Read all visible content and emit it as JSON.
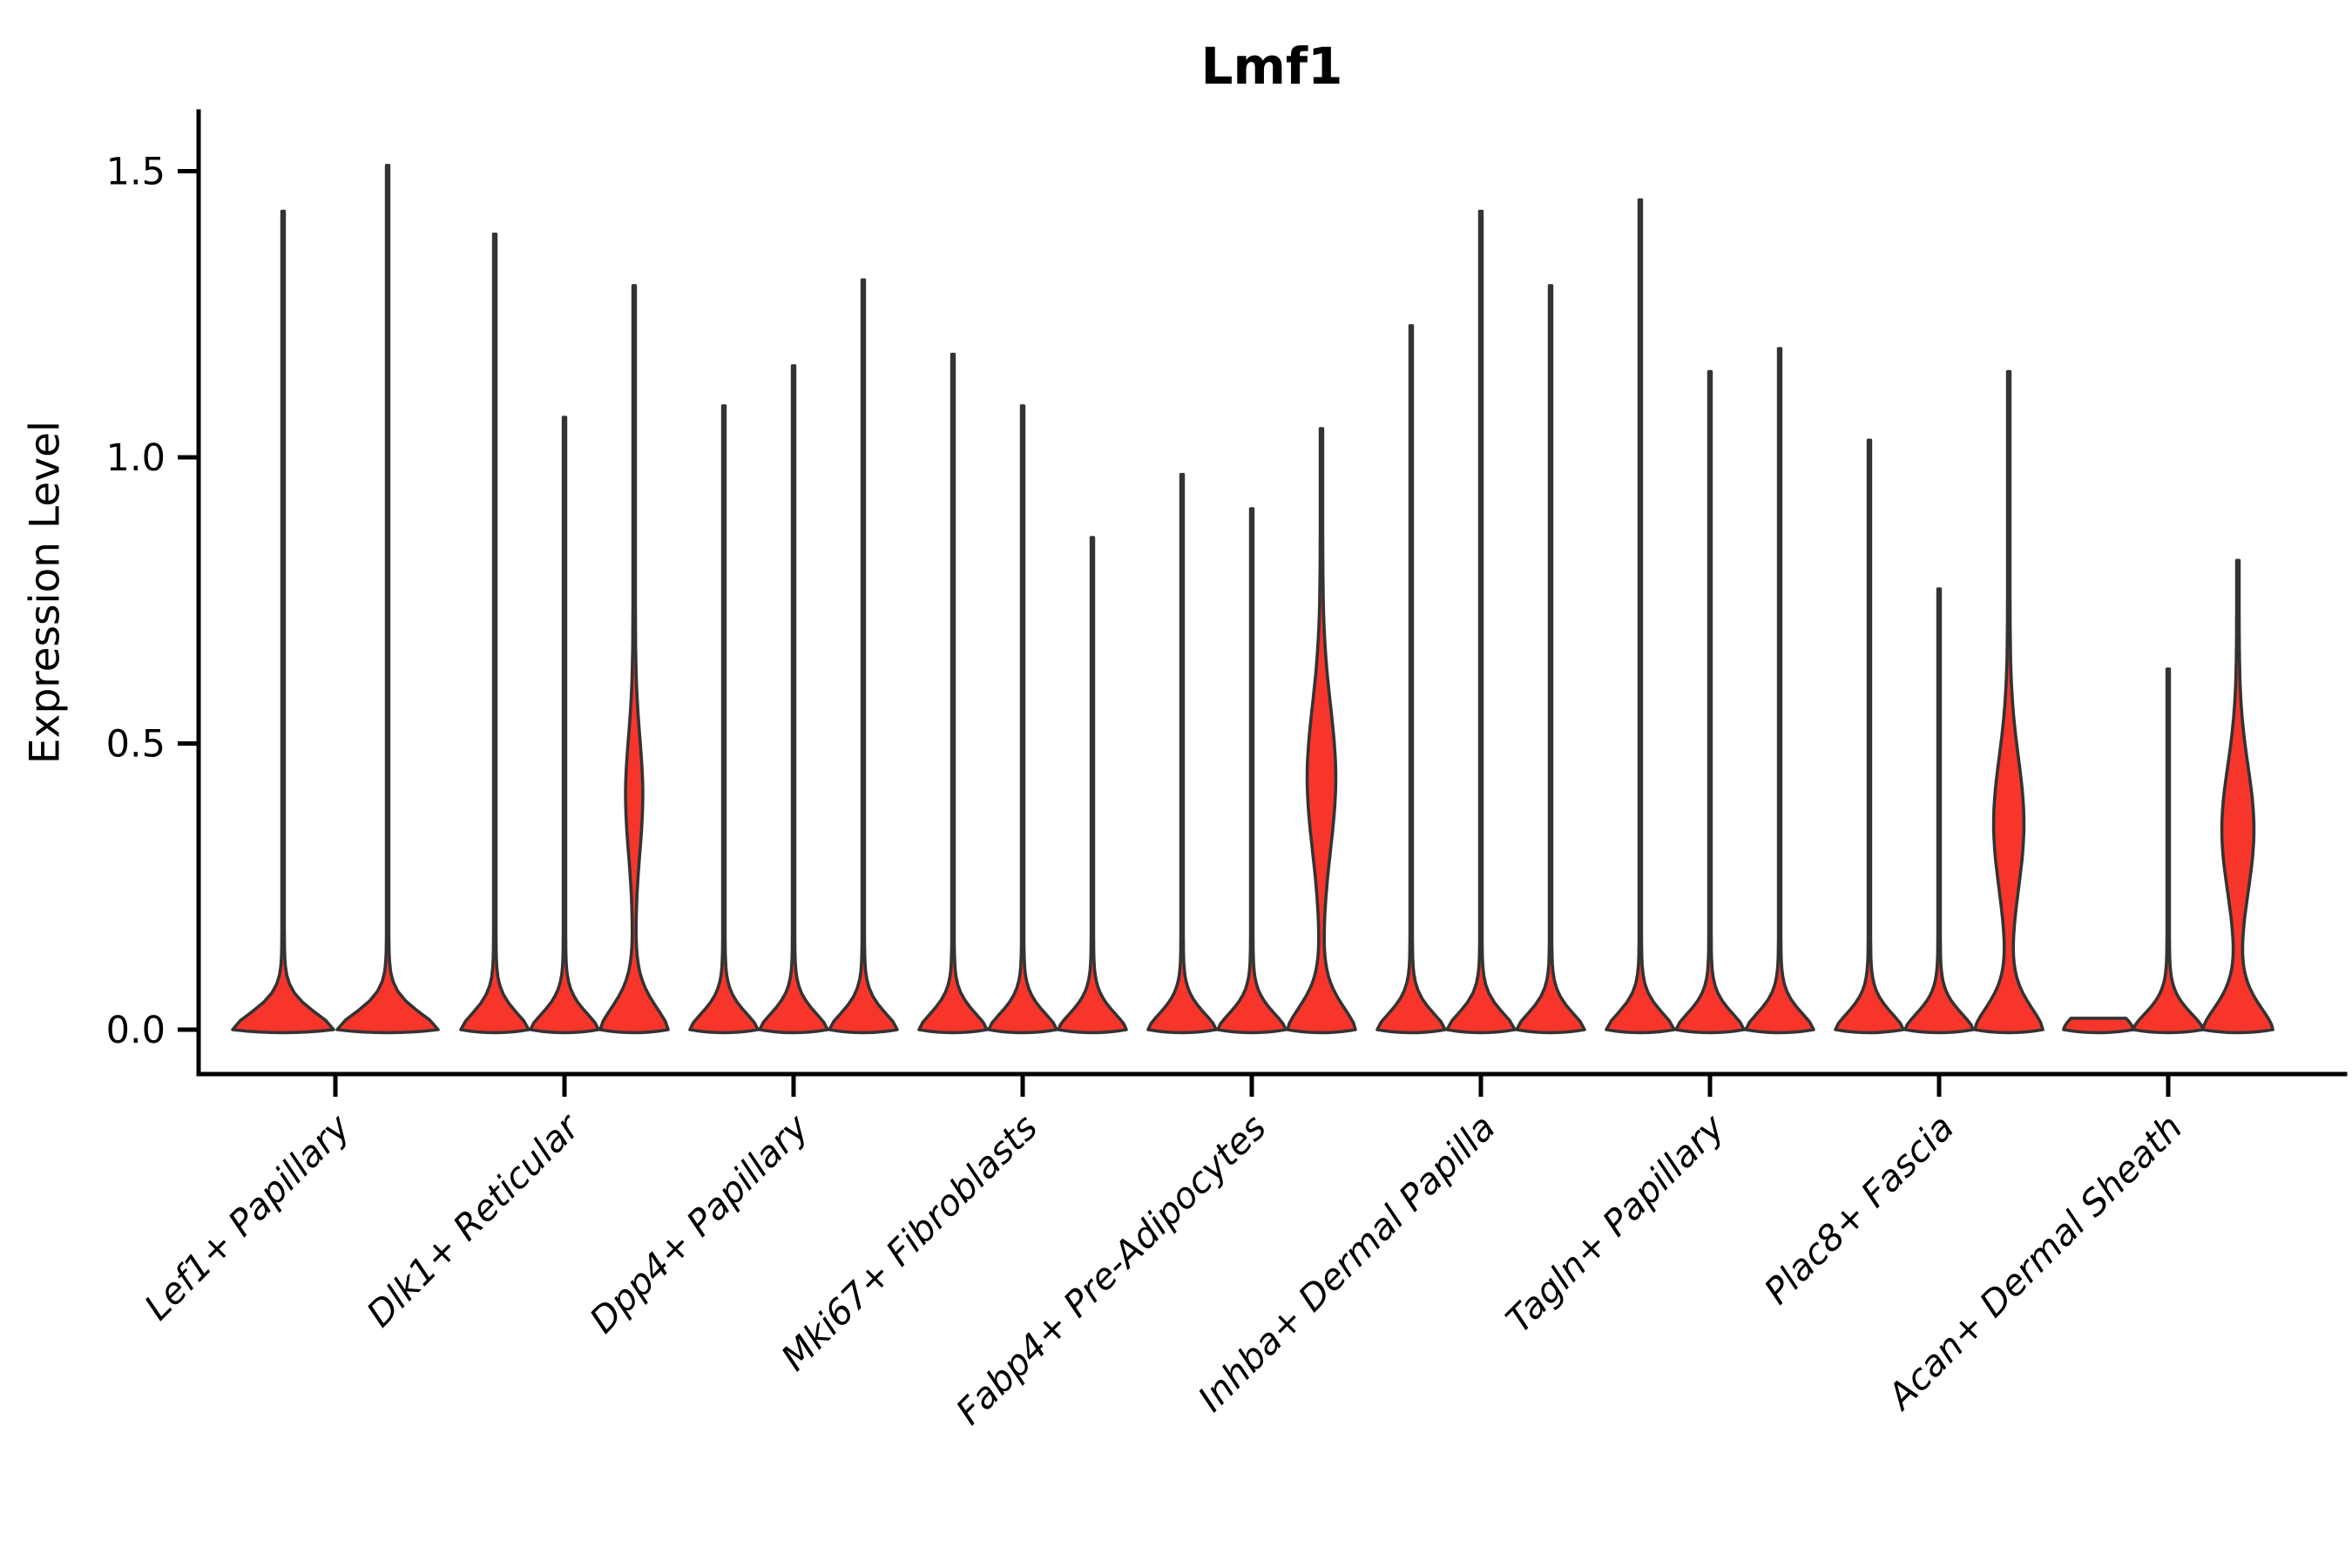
{
  "title": "Lmf1",
  "ylabel": "Expression Level",
  "colors": {
    "violin_fill": "#f8352b",
    "violin_stroke": "#333333",
    "axis": "#000000"
  },
  "chart_data": {
    "type": "violin",
    "title": "Lmf1",
    "xlabel": "",
    "ylabel": "Expression Level",
    "ylim": [
      -0.08,
      1.6
    ],
    "yticks": [
      0.0,
      0.5,
      1.0,
      1.5
    ],
    "ytick_labels": [
      "0.0",
      "0.5",
      "1.0",
      "1.5"
    ],
    "grid": false,
    "legend": "none",
    "categories": [
      "Lef1+ Papillary",
      "Dlk1+ Reticular",
      "Dpp4+ Papillary",
      "Mki67+ Fibroblasts",
      "Fabp4+ Pre-Adipocytes",
      "Inhba+ Dermal Papilla",
      "Tagln+ Papillary",
      "Plac8+ Fascia",
      "Acan+ Dermal Sheath"
    ],
    "groups": [
      {
        "label": "Lef1+ Papillary",
        "violin_halfwidth": 58,
        "violins": [
          {
            "offset": -60,
            "max": 1.43,
            "style": "thin"
          },
          {
            "offset": 60,
            "max": 1.51,
            "style": "thin"
          }
        ]
      },
      {
        "label": "Dlk1+ Reticular",
        "violin_halfwidth": 39,
        "violins": [
          {
            "offset": -80,
            "max": 1.39,
            "style": "thin"
          },
          {
            "offset": 0,
            "max": 1.07,
            "style": "thin"
          },
          {
            "offset": 80,
            "max": 1.3,
            "style": "red",
            "bulge": {
              "center": 0.41,
              "spread": 0.1,
              "halfwidth": 8.5
            }
          }
        ]
      },
      {
        "label": "Dpp4+ Papillary",
        "violin_halfwidth": 39,
        "violins": [
          {
            "offset": -80,
            "max": 1.09,
            "style": "thin"
          },
          {
            "offset": 0,
            "max": 1.16,
            "style": "thin"
          },
          {
            "offset": 80,
            "max": 1.31,
            "style": "thin"
          }
        ]
      },
      {
        "label": "Mki67+ Fibroblasts",
        "violin_halfwidth": 39,
        "violins": [
          {
            "offset": -80,
            "max": 1.18,
            "style": "thin"
          },
          {
            "offset": 0,
            "max": 1.09,
            "style": "thin"
          },
          {
            "offset": 80,
            "max": 0.86,
            "style": "thin"
          }
        ]
      },
      {
        "label": "Fabp4+ Pre-Adipocytes",
        "violin_halfwidth": 39,
        "violins": [
          {
            "offset": -80,
            "max": 0.97,
            "style": "thin"
          },
          {
            "offset": 0,
            "max": 0.91,
            "style": "thin"
          },
          {
            "offset": 80,
            "max": 1.05,
            "style": "red",
            "bulge": {
              "center": 0.44,
              "spread": 0.125,
              "halfwidth": 15
            }
          }
        ]
      },
      {
        "label": "Inhba+ Dermal Papilla",
        "violin_halfwidth": 39,
        "violins": [
          {
            "offset": -80,
            "max": 1.23,
            "style": "thin"
          },
          {
            "offset": 0,
            "max": 1.43,
            "style": "thin"
          },
          {
            "offset": 80,
            "max": 1.3,
            "style": "thin"
          }
        ]
      },
      {
        "label": "Tagln+ Papillary",
        "violin_halfwidth": 39,
        "violins": [
          {
            "offset": -80,
            "max": 1.45,
            "style": "thin"
          },
          {
            "offset": 0,
            "max": 1.15,
            "style": "thin"
          },
          {
            "offset": 80,
            "max": 1.19,
            "style": "thin"
          }
        ]
      },
      {
        "label": "Plac8+ Fascia",
        "violin_halfwidth": 39,
        "violins": [
          {
            "offset": -80,
            "max": 1.03,
            "style": "thin"
          },
          {
            "offset": 0,
            "max": 0.77,
            "style": "thin"
          },
          {
            "offset": 80,
            "max": 1.15,
            "style": "red",
            "bulge": {
              "center": 0.36,
              "spread": 0.115,
              "halfwidth": 16
            }
          }
        ]
      },
      {
        "label": "Acan+ Dermal Sheath",
        "violin_halfwidth": 40,
        "violins": [
          {
            "offset": -80,
            "max": 0.02,
            "style": "flat"
          },
          {
            "offset": 0,
            "max": 0.63,
            "style": "thin"
          },
          {
            "offset": 80,
            "max": 0.82,
            "style": "red",
            "bulge": {
              "center": 0.35,
              "spread": 0.11,
              "halfwidth": 17
            }
          }
        ]
      }
    ]
  }
}
